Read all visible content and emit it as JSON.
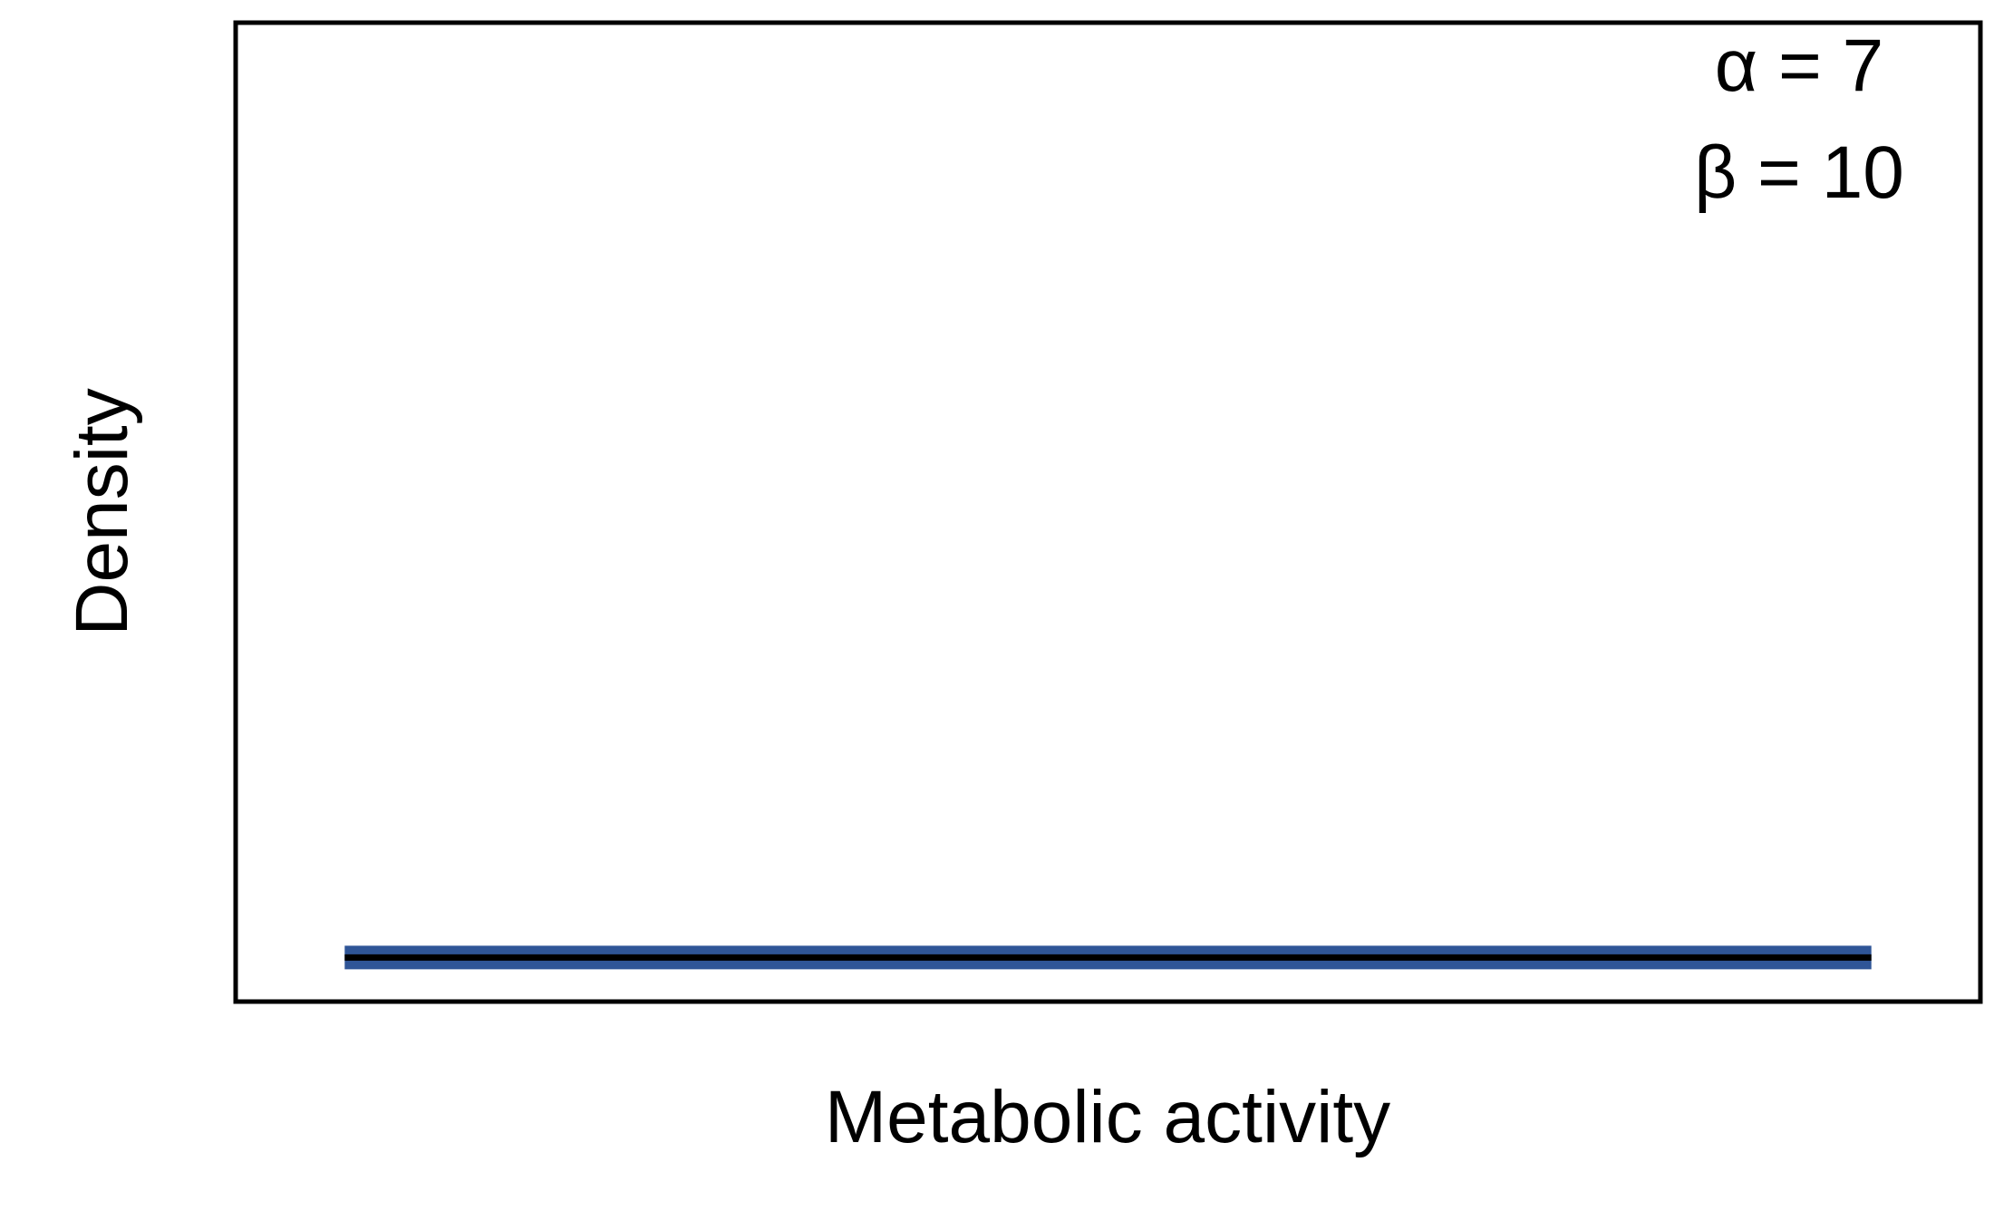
{
  "chart_data": {
    "type": "line",
    "xlabel": "Metabolic activity",
    "ylabel": "Density",
    "xlim": [
      0,
      1
    ],
    "ylim": [
      0,
      1
    ],
    "grid": false,
    "legend": "none",
    "annotations": [
      {
        "label": "α = 7"
      },
      {
        "label": "β = 10"
      }
    ],
    "series": [
      {
        "x": [
          0.0625,
          0.9375
        ],
        "y": [
          0.045,
          0.045
        ],
        "color": "#2f5597",
        "line_style": "thick"
      },
      {
        "x": [
          0.0625,
          0.9375
        ],
        "y": [
          0.045,
          0.045
        ],
        "color": "#000000",
        "line_style": "thin"
      }
    ]
  }
}
